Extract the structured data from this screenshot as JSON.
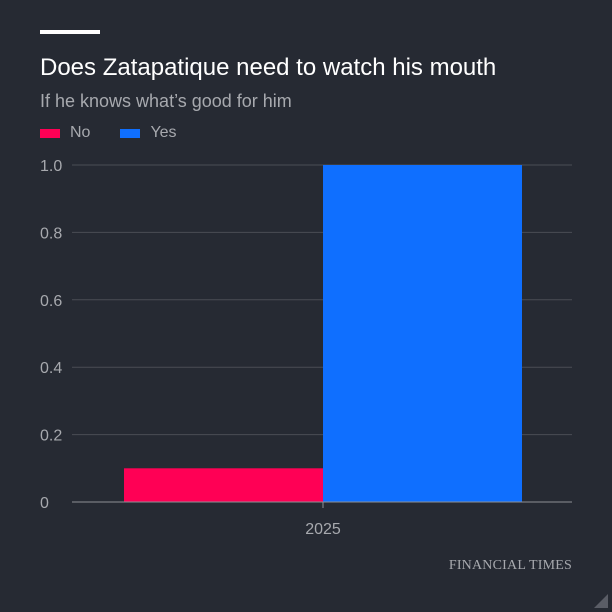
{
  "colors": {
    "background": "#262a33",
    "no": "#ff0055",
    "yes": "#0f6fff",
    "grid": "#4a4d55",
    "text_muted": "#a7a9ae"
  },
  "source": "FINANCIAL TIMES",
  "chart_data": {
    "type": "bar",
    "title": "Does Zatapatique need to watch his mouth",
    "subtitle": "If he knows what’s good for him",
    "categories": [
      "2025"
    ],
    "series": [
      {
        "name": "No",
        "color": "#ff0055",
        "values": [
          0.1
        ]
      },
      {
        "name": "Yes",
        "color": "#0f6fff",
        "values": [
          1.0
        ]
      }
    ],
    "ylim": [
      0,
      1.0
    ],
    "yticks": [
      0,
      0.2,
      0.4,
      0.6,
      0.8,
      1.0
    ],
    "ytick_labels": [
      "0",
      "0.2",
      "0.4",
      "0.6",
      "0.8",
      "1.0"
    ],
    "grid": true,
    "legend_position": "top-left"
  }
}
